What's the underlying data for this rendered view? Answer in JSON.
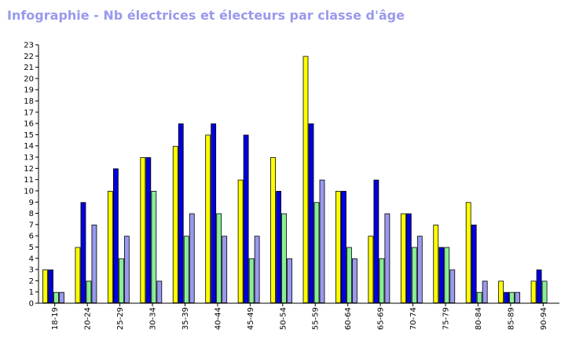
{
  "chart_data": {
    "type": "bar",
    "title": "Infographie - Nb électrices et électeurs par classe d'âge",
    "categories": [
      "18-19",
      "20-24",
      "25-29",
      "30-34",
      "35-39",
      "40-44",
      "45-49",
      "50-54",
      "55-59",
      "60-64",
      "65-69",
      "70-74",
      "75-79",
      "80-84",
      "85-89",
      "90-94"
    ],
    "series": [
      {
        "values": [
          3,
          5,
          10,
          13,
          14,
          15,
          11,
          13,
          22,
          10,
          6,
          8,
          7,
          9,
          2,
          2
        ],
        "color": "#ffff00"
      },
      {
        "values": [
          3,
          9,
          12,
          13,
          16,
          16,
          15,
          10,
          16,
          10,
          11,
          8,
          5,
          7,
          1,
          3
        ],
        "color": "#0000dd"
      },
      {
        "values": [
          1,
          2,
          4,
          10,
          6,
          8,
          4,
          8,
          9,
          5,
          4,
          5,
          5,
          1,
          1,
          2
        ],
        "color": "#88ee99"
      },
      {
        "values": [
          1,
          7,
          6,
          2,
          8,
          6,
          6,
          4,
          11,
          4,
          8,
          6,
          3,
          2,
          1,
          0
        ],
        "color": "#9999ee"
      }
    ],
    "xlabel": "",
    "ylabel": "",
    "ylim": [
      0,
      23
    ],
    "yticks": [
      "0",
      "1",
      "2",
      "3",
      "4",
      "5",
      "6",
      "7",
      "8",
      "9",
      "10",
      "11",
      "12",
      "13",
      "14",
      "15",
      "16",
      "17",
      "18",
      "19",
      "20",
      "21",
      "22",
      "23"
    ],
    "legend": "none"
  }
}
